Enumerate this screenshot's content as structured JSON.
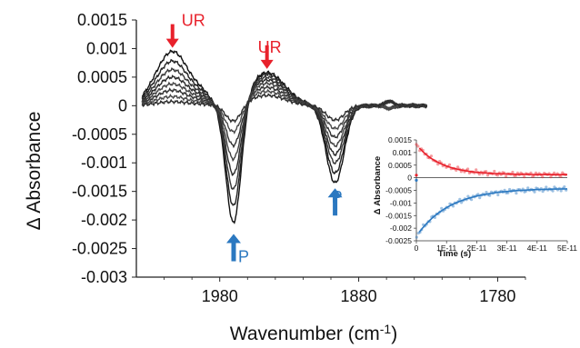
{
  "chart_data": [
    {
      "type": "line",
      "xlabel_main": "Wavenumber (cm",
      "xlabel_sup": "-1",
      "xlabel_end": ")",
      "ylabel": "Δ Absorbance",
      "xlim": [
        2040,
        1760
      ],
      "ylim": [
        -0.003,
        0.0015
      ],
      "xticks": [
        "1980",
        "1880",
        "1780"
      ],
      "yticks": [
        "0.0015",
        "0.001",
        "0.0005",
        "0",
        "-0.0005",
        "-0.001",
        "-0.0015",
        "-0.002",
        "-0.0025",
        "-0.003"
      ],
      "grid": false,
      "series_count": 8,
      "peaks": [
        {
          "center": 2014,
          "amplitudes": [
            0.00095,
            0.00078,
            0.00063,
            0.0005,
            0.00038,
            0.00027,
            0.00016,
            7e-05
          ]
        },
        {
          "center": 1946,
          "amplitudes": [
            0.00058,
            0.00055,
            0.0005,
            0.00045,
            0.00039,
            0.00032,
            0.00025,
            0.00018
          ]
        },
        {
          "center": 1970,
          "amplitudes": [
            -0.00215,
            -0.00185,
            -0.00155,
            -0.00128,
            -0.001,
            -0.00075,
            -0.0005,
            -0.0003
          ]
        },
        {
          "center": 1897,
          "amplitudes": [
            -0.00135,
            -0.00118,
            -0.001,
            -0.00085,
            -0.0007,
            -0.00055,
            -0.0004,
            -0.00025
          ]
        }
      ],
      "annotations": [
        {
          "text": "UR",
          "color": "#e8212b",
          "target_x": 2014,
          "target_y": 0.00095
        },
        {
          "text": "UR",
          "color": "#e8212b",
          "target_x": 1946,
          "target_y": 0.00058
        },
        {
          "text": "P",
          "color": "#2b78c0",
          "target_x": 1970,
          "target_y": -0.00215
        },
        {
          "text": "P",
          "color": "#2b78c0",
          "target_x": 1897,
          "target_y": -0.00135
        }
      ]
    },
    {
      "type": "scatter",
      "xlabel": "Time (s)",
      "ylabel": "Δ Absorbance",
      "xlim": [
        0,
        5e-11
      ],
      "ylim": [
        -0.0025,
        0.0015
      ],
      "xticks": [
        "0",
        "1E-11",
        "2E-11",
        "3E-11",
        "4E-11",
        "5E-11"
      ],
      "yticks": [
        "0.0015",
        "0.001",
        "0.0005",
        "0",
        "-0.0005",
        "-0.001",
        "-0.0015",
        "-0.002",
        "-0.0025"
      ],
      "series": [
        {
          "color": "#e8212b",
          "fit": {
            "offset": 0.00012,
            "amplitude": 0.0012,
            "tau": 8e-12
          }
        },
        {
          "color": "#2b78c0",
          "fit": {
            "offset": -0.00042,
            "amplitude": -0.0019,
            "tau": 1.1e-11
          }
        }
      ]
    }
  ]
}
